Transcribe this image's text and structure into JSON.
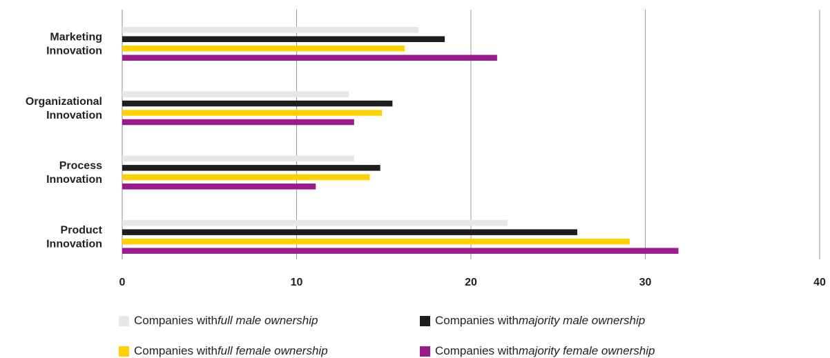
{
  "chart_data": {
    "type": "bar",
    "orientation": "horizontal",
    "categories": [
      "Marketing Innovation",
      "Organizational Innovation",
      "Process Innovation",
      "Product Innovation"
    ],
    "category_lines": [
      [
        "Marketing",
        "Innovation"
      ],
      [
        "Organizational",
        "Innovation"
      ],
      [
        "Process",
        "Innovation"
      ],
      [
        "Product",
        "Innovation"
      ]
    ],
    "series": [
      {
        "name": "Companies with full male ownership",
        "prefix": "Companies with ",
        "emphasis": "full male ownership",
        "color": "#e8e6e6",
        "values": [
          17.0,
          13.0,
          13.3,
          22.1
        ]
      },
      {
        "name": "Companies with majority male ownership",
        "prefix": "Companies with ",
        "emphasis": "majority male ownership",
        "color": "#1e1e1e",
        "values": [
          18.5,
          15.5,
          14.8,
          26.1
        ]
      },
      {
        "name": "Companies with full female ownership",
        "prefix": "Companies with ",
        "emphasis": "full female ownership",
        "color": "#ffd100",
        "values": [
          16.2,
          14.9,
          14.2,
          29.1
        ]
      },
      {
        "name": "Companies with majority female ownership",
        "prefix": "Companies with ",
        "emphasis": "majority female ownership",
        "color": "#9b1b8d",
        "values": [
          21.5,
          13.3,
          11.1,
          31.9
        ]
      }
    ],
    "x_ticks": [
      0,
      10,
      20,
      30,
      40
    ],
    "xlim": [
      0,
      40
    ],
    "xlabel": "",
    "ylabel": "",
    "grid": "vertical",
    "legend_position": "bottom"
  }
}
